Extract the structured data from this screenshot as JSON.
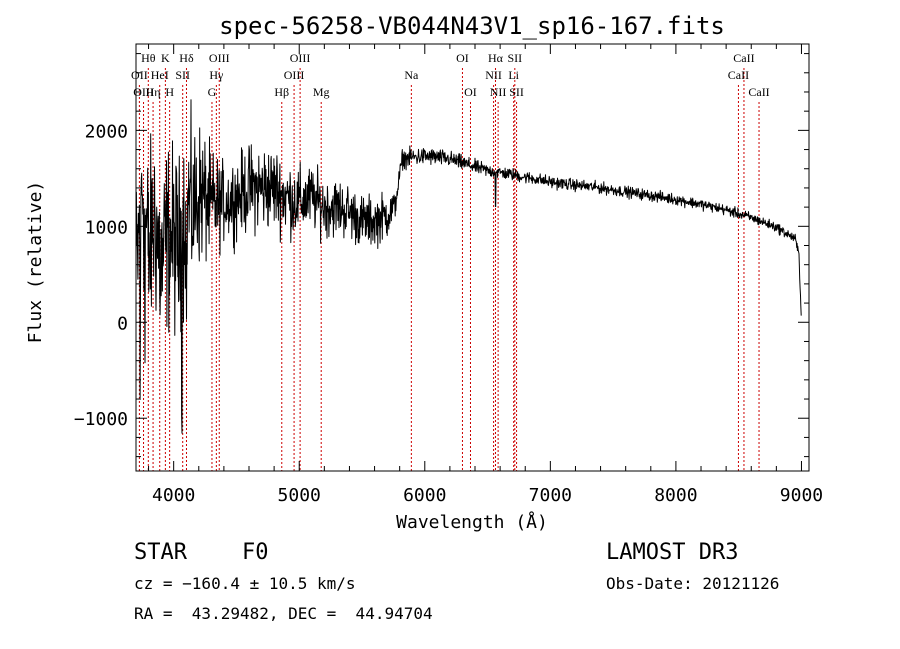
{
  "chart_data": {
    "type": "line",
    "title": "spec-56258-VB044N43V1_sp16-167.fits",
    "xlabel": "Wavelength (Å)",
    "ylabel": "Flux (relative)",
    "xlim": [
      3700,
      9060
    ],
    "ylim": [
      -1550,
      2900
    ],
    "xticks": [
      4000,
      5000,
      6000,
      7000,
      8000,
      9000
    ],
    "xtick_labels": [
      "4000",
      "5000",
      "6000",
      "7000",
      "8000",
      "9000"
    ],
    "yticks": [
      -1000,
      0,
      1000,
      2000
    ],
    "ytick_labels": [
      "−1000",
      "0",
      "1000",
      "2000"
    ],
    "x_minor_step": 200,
    "y_minor_step": 200,
    "series": [
      {
        "name": "flux",
        "anchors": [
          [
            3700,
            400
          ],
          [
            3750,
            1500
          ],
          [
            3800,
            700
          ],
          [
            3850,
            1100
          ],
          [
            3900,
            550
          ],
          [
            3950,
            900
          ],
          [
            4000,
            850
          ],
          [
            4050,
            750
          ],
          [
            4100,
            1300
          ],
          [
            4150,
            1150
          ],
          [
            4200,
            1350
          ],
          [
            4300,
            1200
          ],
          [
            4400,
            1250
          ],
          [
            4500,
            1300
          ],
          [
            4600,
            1400
          ],
          [
            4700,
            1400
          ],
          [
            4800,
            1400
          ],
          [
            4900,
            1300
          ],
          [
            5000,
            1250
          ],
          [
            5100,
            1300
          ],
          [
            5200,
            1200
          ],
          [
            5300,
            1200
          ],
          [
            5400,
            1150
          ],
          [
            5500,
            1050
          ],
          [
            5600,
            1050
          ],
          [
            5700,
            1120
          ],
          [
            5760,
            1200
          ],
          [
            5790,
            1450
          ],
          [
            5820,
            1700
          ],
          [
            5900,
            1720
          ],
          [
            6000,
            1730
          ],
          [
            6100,
            1720
          ],
          [
            6200,
            1700
          ],
          [
            6300,
            1660
          ],
          [
            6400,
            1620
          ],
          [
            6500,
            1580
          ],
          [
            6600,
            1560
          ],
          [
            6700,
            1540
          ],
          [
            6800,
            1510
          ],
          [
            6900,
            1490
          ],
          [
            7000,
            1460
          ],
          [
            7200,
            1430
          ],
          [
            7400,
            1400
          ],
          [
            7600,
            1360
          ],
          [
            7800,
            1320
          ],
          [
            8000,
            1280
          ],
          [
            8200,
            1230
          ],
          [
            8400,
            1170
          ],
          [
            8600,
            1090
          ],
          [
            8800,
            990
          ],
          [
            8950,
            870
          ],
          [
            8980,
            700
          ],
          [
            9000,
            0
          ]
        ],
        "noise_profile": [
          [
            3700,
            750
          ],
          [
            4100,
            650
          ],
          [
            4400,
            280
          ],
          [
            4700,
            320
          ],
          [
            5100,
            230
          ],
          [
            5700,
            170
          ],
          [
            5800,
            70
          ],
          [
            6600,
            45
          ],
          [
            9000,
            35
          ]
        ],
        "features": [
          {
            "wavelength": 3735,
            "depth": -1600
          },
          {
            "wavelength": 3770,
            "depth": -1400
          },
          {
            "wavelength": 4065,
            "depth": -1050
          },
          {
            "wavelength": 4102,
            "depth": -1000
          },
          {
            "wavelength": 6563,
            "depth": -330
          }
        ]
      }
    ],
    "lines": [
      {
        "label": "Hθ",
        "wavelength": 3798,
        "row": 0,
        "align": "center"
      },
      {
        "label": "OII",
        "wavelength": 3727,
        "row": 1,
        "align": "center"
      },
      {
        "label": "OIII",
        "wavelength": 3760,
        "row": 2,
        "align": "center"
      },
      {
        "label": "Hη",
        "wavelength": 3836,
        "row": 2,
        "align": "center"
      },
      {
        "label": "K",
        "wavelength": 3934,
        "row": 0,
        "align": "center"
      },
      {
        "label": "HeI",
        "wavelength": 3889,
        "row": 1,
        "align": "center"
      },
      {
        "label": "H",
        "wavelength": 3968,
        "row": 2,
        "align": "center"
      },
      {
        "label": "SII",
        "wavelength": 4072,
        "row": 1,
        "align": "center"
      },
      {
        "label": "Hδ",
        "wavelength": 4102,
        "row": 0,
        "align": "center"
      },
      {
        "label": "OIII",
        "wavelength": 4363,
        "row": 0,
        "align": "center"
      },
      {
        "label": "Hγ",
        "wavelength": 4340,
        "row": 1,
        "align": "center"
      },
      {
        "label": "G",
        "wavelength": 4305,
        "row": 2,
        "align": "center"
      },
      {
        "label": "Hβ",
        "wavelength": 4861,
        "row": 3,
        "align": "center"
      },
      {
        "label": "OIII",
        "wavelength": 5007,
        "row": 0,
        "align": "center"
      },
      {
        "label": "OIII",
        "wavelength": 4959,
        "row": 1,
        "align": "center"
      },
      {
        "label": "Mg",
        "wavelength": 5175,
        "row": 3,
        "align": "center"
      },
      {
        "label": "Na",
        "wavelength": 5893,
        "row": 1,
        "align": "center"
      },
      {
        "label": "OI",
        "wavelength": 6300,
        "row": 0,
        "align": "center"
      },
      {
        "label": "OI",
        "wavelength": 6364,
        "row": 3,
        "align": "center"
      },
      {
        "label": "Hα",
        "wavelength": 6563,
        "row": 0,
        "align": "center"
      },
      {
        "label": "NII",
        "wavelength": 6548,
        "row": 1,
        "align": "center"
      },
      {
        "label": "NII",
        "wavelength": 6584,
        "row": 3,
        "align": "center"
      },
      {
        "label": "SII",
        "wavelength": 6717,
        "row": 0,
        "align": "center"
      },
      {
        "label": "SII",
        "wavelength": 6731,
        "row": 3,
        "align": "center"
      },
      {
        "label": "Li",
        "wavelength": 6708,
        "row": 1,
        "align": "center"
      },
      {
        "label": "CaII",
        "wavelength": 8542,
        "row": 0,
        "align": "center"
      },
      {
        "label": "CaII",
        "wavelength": 8498,
        "row": 1,
        "align": "center"
      },
      {
        "label": "CaII",
        "wavelength": 8662,
        "row": 3,
        "align": "center"
      }
    ],
    "line_color": "#cc0000"
  },
  "footer": {
    "object_class": "STAR",
    "subclass": "F0",
    "survey": "LAMOST DR3",
    "velocity": "cz = −160.4 ± 10.5 km/s",
    "obs_date": "Obs-Date: 20121126",
    "coordinates": "RA =  43.29482, DEC =  44.94704"
  }
}
